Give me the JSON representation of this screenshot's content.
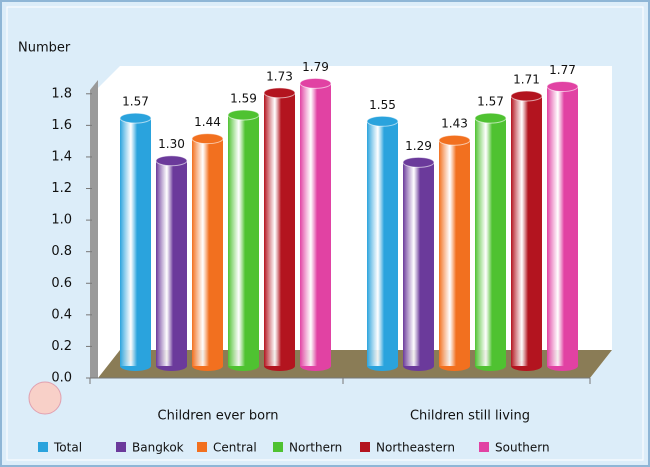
{
  "chart_data": {
    "type": "bar",
    "y_label": "Number",
    "categories": [
      "Children ever born",
      "Children still living"
    ],
    "series": [
      {
        "name": "Total",
        "color": "#2aa3dd",
        "values": [
          1.57,
          1.55
        ],
        "value_labels": [
          "1.57",
          "1.55"
        ]
      },
      {
        "name": "Bangkok",
        "color": "#6b3a9b",
        "values": [
          1.3,
          1.29
        ],
        "value_labels": [
          "1.30",
          "1.29"
        ]
      },
      {
        "name": "Central",
        "color": "#f2701f",
        "values": [
          1.44,
          1.43
        ],
        "value_labels": [
          "1.44",
          "1.43"
        ]
      },
      {
        "name": "Northern",
        "color": "#4fc231",
        "values": [
          1.59,
          1.57
        ],
        "value_labels": [
          "1.59",
          "1.57"
        ]
      },
      {
        "name": "Northeastern",
        "color": "#b3141f",
        "values": [
          1.73,
          1.71
        ],
        "value_labels": [
          "1.73",
          "1.71"
        ]
      },
      {
        "name": "Southern",
        "color": "#e142a3",
        "values": [
          1.79,
          1.77
        ],
        "value_labels": [
          "1.79",
          "1.77"
        ]
      }
    ],
    "ylim": [
      0,
      1.9
    ],
    "yticks": [
      {
        "value": 0,
        "label": "0.0"
      },
      0.2,
      0.4,
      0.6,
      0.8,
      {
        "value": 1,
        "label": "1.0"
      },
      1.2,
      1.4,
      1.6,
      1.8
    ]
  }
}
